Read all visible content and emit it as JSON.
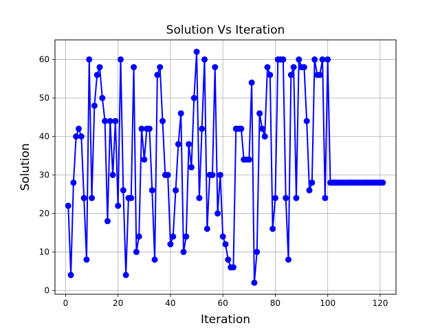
{
  "chart_data": {
    "type": "line",
    "title": "Solution Vs Iteration",
    "xlabel": "Iteration",
    "ylabel": "Solution",
    "xlim": [
      -4.05,
      126.05
    ],
    "ylim": [
      -1.0,
      65.1
    ],
    "xticks": [
      0,
      20,
      40,
      60,
      80,
      100,
      120
    ],
    "yticks": [
      0,
      10,
      20,
      30,
      40,
      50,
      60
    ],
    "grid": true,
    "marker": "circle",
    "colors": {
      "series": "#0000ff",
      "grid": "#b0b0b0",
      "axis": "#000000"
    },
    "series": [
      {
        "x": [
          1,
          2,
          3,
          4,
          5,
          6,
          7,
          8,
          9,
          10,
          11,
          12,
          13,
          14,
          15,
          16,
          17,
          18,
          19,
          20,
          21,
          22,
          23,
          24,
          25,
          26,
          27,
          28,
          29,
          30,
          31,
          32,
          33,
          34,
          35,
          36,
          37,
          38,
          39,
          40,
          41,
          42,
          43,
          44,
          45,
          46,
          47,
          48,
          49,
          50,
          51,
          52,
          53,
          54,
          55,
          56,
          57,
          58,
          59,
          60,
          61,
          62,
          63,
          64,
          65,
          66,
          67,
          68,
          69,
          70,
          71,
          72,
          73,
          74,
          75,
          76,
          77,
          78,
          79,
          80,
          81,
          82,
          83,
          84,
          85,
          86,
          87,
          88,
          89,
          90,
          91,
          92,
          93,
          94,
          95,
          96,
          97,
          98,
          99,
          100,
          101,
          102,
          103,
          104,
          105,
          106,
          107,
          108,
          109,
          110,
          111,
          112,
          113,
          114,
          115,
          116,
          117,
          118,
          119,
          120,
          121
        ],
        "values": [
          22,
          4,
          28,
          40,
          42,
          40,
          24,
          8,
          60,
          24,
          48,
          56,
          58,
          50,
          44,
          18,
          44,
          30,
          44,
          22,
          60,
          26,
          4,
          24,
          24,
          58,
          10,
          14,
          42,
          34,
          42,
          42,
          26,
          8,
          56,
          58,
          44,
          30,
          30,
          12,
          14,
          26,
          38,
          46,
          10,
          14,
          38,
          32,
          50,
          62,
          24,
          42,
          60,
          16,
          30,
          30,
          58,
          20,
          30,
          14,
          12,
          8,
          6,
          6,
          42,
          42,
          42,
          34,
          34,
          34,
          54,
          2,
          10,
          46,
          42,
          40,
          58,
          56,
          16,
          24,
          60,
          60,
          60,
          24,
          8,
          56,
          58,
          24,
          60,
          58,
          58,
          44,
          26,
          28,
          60,
          56,
          56,
          60,
          24,
          60,
          28,
          28,
          28,
          28,
          28,
          28,
          28,
          28,
          28,
          28,
          28,
          28,
          28,
          28,
          28,
          28,
          28,
          28,
          28,
          28,
          28
        ]
      }
    ]
  }
}
